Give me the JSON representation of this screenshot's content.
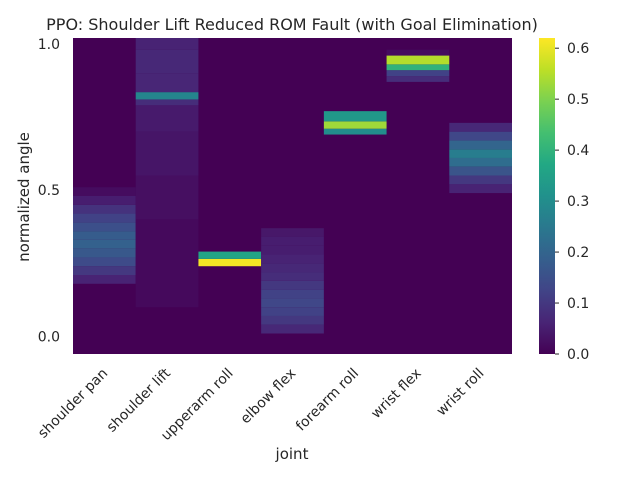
{
  "chart_data": {
    "type": "heatmap",
    "title": "PPO: Shoulder Lift Reduced ROM Fault (with Goal Elimination)",
    "xlabel": "joint",
    "ylabel": "normalized angle",
    "categories": [
      "shoulder pan",
      "shoulder lift",
      "upperarm roll",
      "elbow flex",
      "forearm roll",
      "wrist flex",
      "wrist roll"
    ],
    "y_ticks": [
      {
        "value": 1.0,
        "label": "1.0"
      },
      {
        "value": 0.5,
        "label": "0.5"
      },
      {
        "value": 0.0,
        "label": "0.0"
      }
    ],
    "ylim": [
      -0.06,
      1.02
    ],
    "colorbar": {
      "range": [
        0.0,
        0.62
      ],
      "ticks": [
        "0.0",
        "0.1",
        "0.2",
        "0.3",
        "0.4",
        "0.5",
        "0.6"
      ],
      "colormap": "viridis"
    },
    "columns": [
      {
        "joint": "shoulder pan",
        "cells": [
          {
            "y0": 0.18,
            "y1": 0.21,
            "v": 0.06
          },
          {
            "y0": 0.21,
            "y1": 0.24,
            "v": 0.1
          },
          {
            "y0": 0.24,
            "y1": 0.27,
            "v": 0.14
          },
          {
            "y0": 0.27,
            "y1": 0.3,
            "v": 0.17
          },
          {
            "y0": 0.3,
            "y1": 0.33,
            "v": 0.19
          },
          {
            "y0": 0.33,
            "y1": 0.36,
            "v": 0.18
          },
          {
            "y0": 0.36,
            "y1": 0.39,
            "v": 0.15
          },
          {
            "y0": 0.39,
            "y1": 0.42,
            "v": 0.12
          },
          {
            "y0": 0.42,
            "y1": 0.45,
            "v": 0.09
          },
          {
            "y0": 0.45,
            "y1": 0.48,
            "v": 0.05
          },
          {
            "y0": 0.48,
            "y1": 0.51,
            "v": 0.02
          }
        ]
      },
      {
        "joint": "shoulder lift",
        "cells": [
          {
            "y0": 0.1,
            "y1": 0.4,
            "v": 0.015
          },
          {
            "y0": 0.4,
            "y1": 0.55,
            "v": 0.025
          },
          {
            "y0": 0.55,
            "y1": 0.7,
            "v": 0.035
          },
          {
            "y0": 0.7,
            "y1": 0.79,
            "v": 0.045
          },
          {
            "y0": 0.79,
            "y1": 0.81,
            "v": 0.08
          },
          {
            "y0": 0.81,
            "y1": 0.835,
            "v": 0.28
          },
          {
            "y0": 0.835,
            "y1": 0.9,
            "v": 0.065
          },
          {
            "y0": 0.9,
            "y1": 0.98,
            "v": 0.07
          },
          {
            "y0": 0.98,
            "y1": 1.02,
            "v": 0.06
          }
        ]
      },
      {
        "joint": "upperarm roll",
        "cells": [
          {
            "y0": 0.24,
            "y1": 0.265,
            "v": 0.61
          },
          {
            "y0": 0.265,
            "y1": 0.29,
            "v": 0.36
          }
        ]
      },
      {
        "joint": "elbow flex",
        "cells": [
          {
            "y0": 0.01,
            "y1": 0.04,
            "v": 0.07
          },
          {
            "y0": 0.04,
            "y1": 0.07,
            "v": 0.1
          },
          {
            "y0": 0.07,
            "y1": 0.1,
            "v": 0.12
          },
          {
            "y0": 0.1,
            "y1": 0.13,
            "v": 0.13
          },
          {
            "y0": 0.13,
            "y1": 0.16,
            "v": 0.12
          },
          {
            "y0": 0.16,
            "y1": 0.19,
            "v": 0.1
          },
          {
            "y0": 0.19,
            "y1": 0.22,
            "v": 0.08
          },
          {
            "y0": 0.22,
            "y1": 0.25,
            "v": 0.07
          },
          {
            "y0": 0.25,
            "y1": 0.28,
            "v": 0.06
          },
          {
            "y0": 0.28,
            "y1": 0.31,
            "v": 0.05
          },
          {
            "y0": 0.31,
            "y1": 0.34,
            "v": 0.05
          },
          {
            "y0": 0.34,
            "y1": 0.37,
            "v": 0.04
          }
        ]
      },
      {
        "joint": "forearm roll",
        "cells": [
          {
            "y0": 0.69,
            "y1": 0.71,
            "v": 0.3
          },
          {
            "y0": 0.71,
            "y1": 0.735,
            "v": 0.53
          },
          {
            "y0": 0.735,
            "y1": 0.77,
            "v": 0.33
          }
        ]
      },
      {
        "joint": "wrist flex",
        "cells": [
          {
            "y0": 0.87,
            "y1": 0.89,
            "v": 0.08
          },
          {
            "y0": 0.89,
            "y1": 0.91,
            "v": 0.12
          },
          {
            "y0": 0.91,
            "y1": 0.93,
            "v": 0.4
          },
          {
            "y0": 0.93,
            "y1": 0.96,
            "v": 0.55
          },
          {
            "y0": 0.96,
            "y1": 0.98,
            "v": 0.02
          }
        ]
      },
      {
        "joint": "wrist roll",
        "cells": [
          {
            "y0": 0.49,
            "y1": 0.52,
            "v": 0.06
          },
          {
            "y0": 0.52,
            "y1": 0.55,
            "v": 0.1
          },
          {
            "y0": 0.55,
            "y1": 0.58,
            "v": 0.16
          },
          {
            "y0": 0.58,
            "y1": 0.61,
            "v": 0.22
          },
          {
            "y0": 0.61,
            "y1": 0.64,
            "v": 0.26
          },
          {
            "y0": 0.64,
            "y1": 0.67,
            "v": 0.2
          },
          {
            "y0": 0.67,
            "y1": 0.7,
            "v": 0.13
          },
          {
            "y0": 0.7,
            "y1": 0.73,
            "v": 0.07
          }
        ]
      }
    ]
  }
}
